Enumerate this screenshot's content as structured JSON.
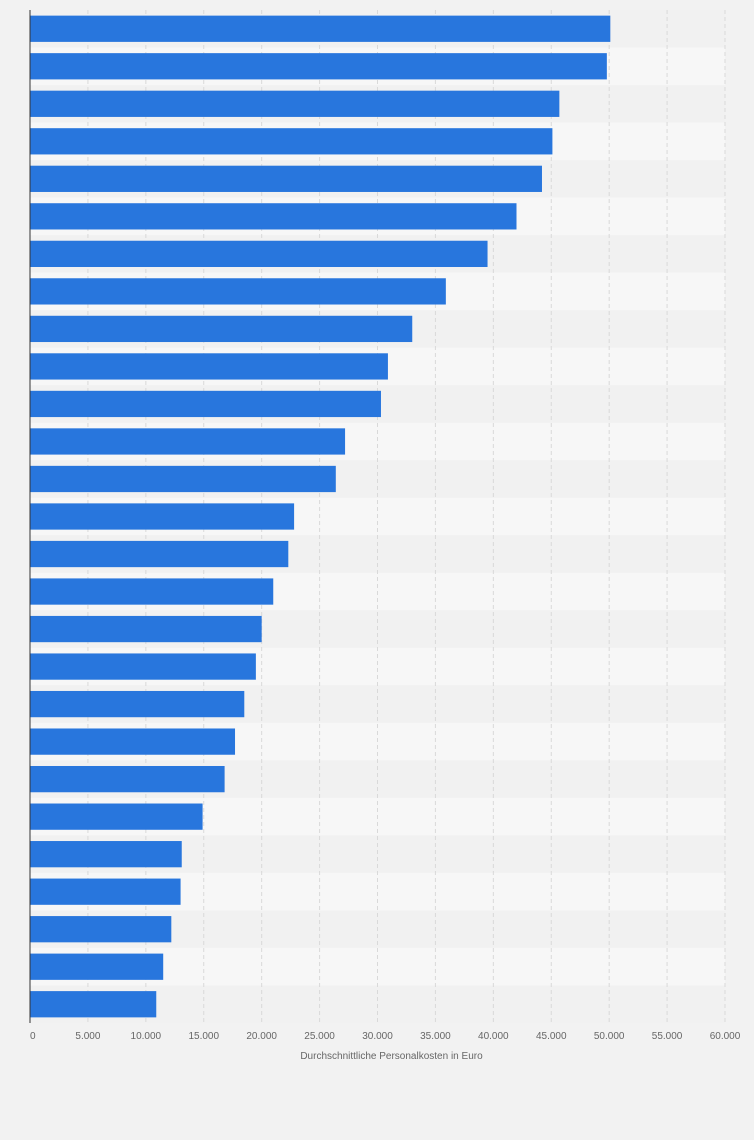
{
  "chart_data": {
    "type": "bar",
    "orientation": "horizontal",
    "values": [
      50100,
      49800,
      45700,
      45100,
      44200,
      42000,
      39500,
      35900,
      33000,
      30900,
      30300,
      27200,
      26400,
      22800,
      22300,
      21000,
      20000,
      19500,
      18500,
      17700,
      16800,
      14900,
      13100,
      13000,
      12200,
      11500,
      10900
    ],
    "xlabel": "Durchschnittliche Personalkosten in Euro",
    "ylabel": "",
    "xlim": [
      0,
      60000
    ],
    "xticks": [
      0,
      5000,
      10000,
      15000,
      20000,
      25000,
      30000,
      35000,
      40000,
      45000,
      50000,
      55000,
      60000
    ],
    "xtick_labels": [
      "0",
      "5.000",
      "10.000",
      "15.000",
      "20.000",
      "25.000",
      "30.000",
      "35.000",
      "40.000",
      "45.000",
      "50.000",
      "55.000",
      "60.000"
    ],
    "grid": true,
    "legend": "none"
  },
  "colors": {
    "bar": "#2876dd",
    "background": "#f2f2f2",
    "band_light": "#f7f7f7",
    "band_dark": "#f1f1f1",
    "gridline": "#d9d9d9",
    "axis": "#333333"
  }
}
